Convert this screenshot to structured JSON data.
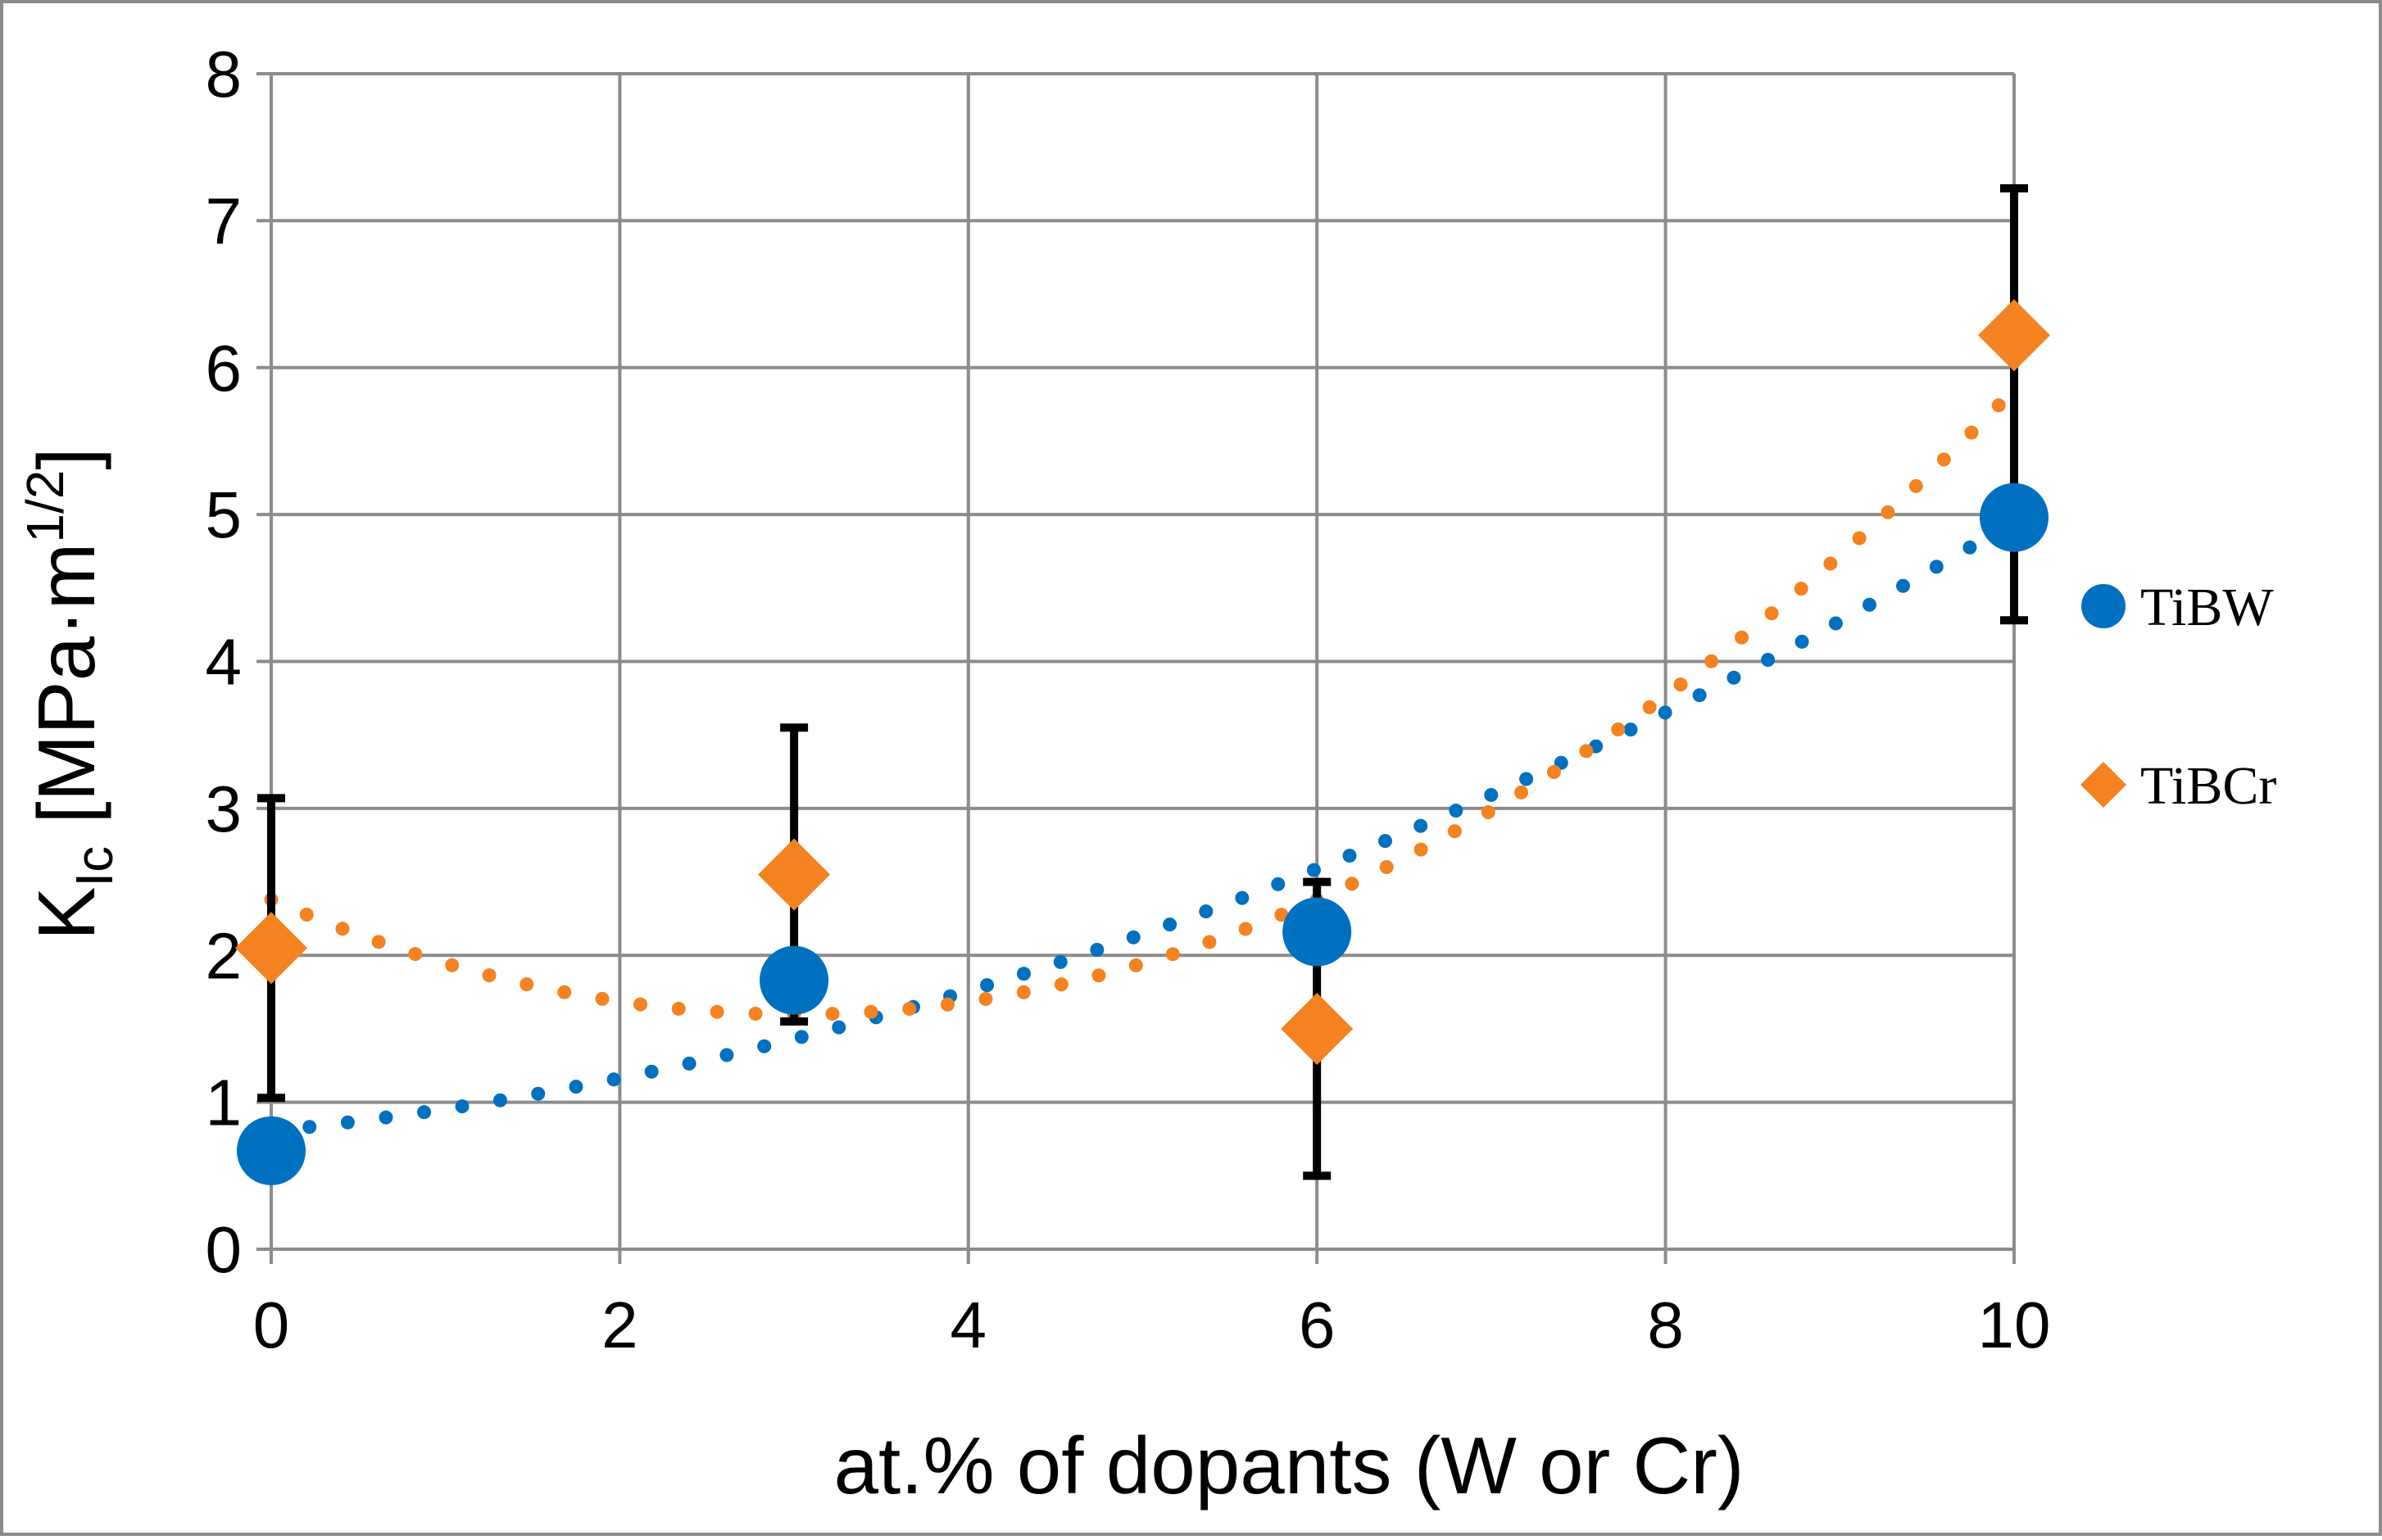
{
  "chart_data": {
    "type": "scatter",
    "title": "",
    "xlabel": "at.% of dopants (W or Cr)",
    "ylabel": {
      "main": "K",
      "sub": "Ic",
      "unit_open": " [MPa·m",
      "unit_sup": "1/2",
      "unit_close": "]"
    },
    "xlim": [
      0,
      10
    ],
    "ylim": [
      0,
      8
    ],
    "xticks": [
      0,
      2,
      4,
      6,
      8,
      10
    ],
    "yticks": [
      0,
      1,
      2,
      3,
      4,
      5,
      6,
      7,
      8
    ],
    "grid": true,
    "legend_position": "right",
    "series": [
      {
        "name": "TiBW",
        "marker": "circle",
        "color": "#0070C0",
        "x": [
          0,
          3,
          6,
          10
        ],
        "y": [
          0.67,
          1.83,
          2.16,
          4.98
        ],
        "trendline": {
          "type": "polynomial-2",
          "coefficients": [
            0.804,
            0.121,
            0.0294
          ]
        }
      },
      {
        "name": "TiBCr",
        "marker": "diamond",
        "color": "#F58220",
        "x": [
          0,
          3,
          6,
          10
        ],
        "y": [
          2.05,
          2.55,
          1.5,
          6.22
        ],
        "error_low": [
          1.03,
          1.55,
          0.5,
          4.28
        ],
        "error_high": [
          3.07,
          3.55,
          2.5,
          7.22
        ],
        "trendline": {
          "type": "polynomial-2",
          "coefficients": [
            2.38,
            -0.521,
            0.0868
          ]
        }
      }
    ]
  }
}
